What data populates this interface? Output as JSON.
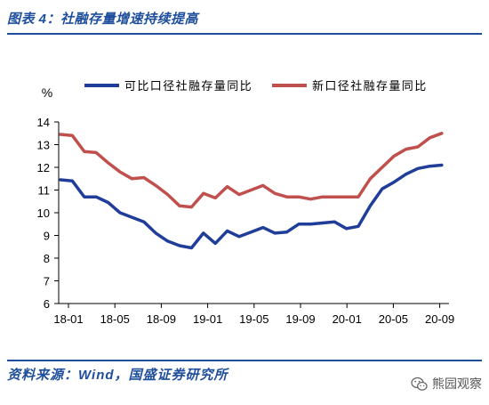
{
  "header": {
    "title": "图表 4：社融存量增速持续提高",
    "accent_color": "#1f4e9c"
  },
  "chart_data": {
    "type": "line",
    "ylabel": "%",
    "ylim": [
      6,
      14
    ],
    "yticks": [
      6,
      7,
      8,
      9,
      10,
      11,
      12,
      13,
      14
    ],
    "grid": false,
    "legend_position": "top",
    "categories": [
      "18-01",
      "18-02",
      "18-03",
      "18-04",
      "18-05",
      "18-06",
      "18-07",
      "18-08",
      "18-09",
      "18-10",
      "18-11",
      "18-12",
      "19-01",
      "19-02",
      "19-03",
      "19-04",
      "19-05",
      "19-06",
      "19-07",
      "19-08",
      "19-09",
      "19-10",
      "19-11",
      "19-12",
      "20-01",
      "20-02",
      "20-03",
      "20-04",
      "20-05",
      "20-06",
      "20-07",
      "20-08",
      "20-09"
    ],
    "series": [
      {
        "name": "可比口径社融存量同比",
        "color": "#1f3d99",
        "values": [
          11.45,
          11.4,
          10.7,
          10.7,
          10.45,
          10.0,
          9.8,
          9.6,
          9.1,
          8.75,
          8.55,
          8.45,
          9.1,
          8.65,
          9.2,
          8.95,
          9.15,
          9.35,
          9.1,
          9.15,
          9.5,
          9.5,
          9.55,
          9.6,
          9.3,
          9.4,
          10.3,
          11.05,
          11.35,
          11.7,
          11.95,
          12.05,
          12.1
        ]
      },
      {
        "name": "新口径社融存量同比",
        "color": "#c0504d",
        "values": [
          13.45,
          13.4,
          12.7,
          12.65,
          12.2,
          11.8,
          11.5,
          11.55,
          11.2,
          10.8,
          10.3,
          10.25,
          10.85,
          10.65,
          11.15,
          10.8,
          11.0,
          11.2,
          10.85,
          10.7,
          10.7,
          10.6,
          10.7,
          10.7,
          10.7,
          10.7,
          11.5,
          12.0,
          12.5,
          12.8,
          12.9,
          13.3,
          13.5
        ]
      }
    ]
  },
  "footer": {
    "source": "资料来源：Wind，国盛证券研究所"
  },
  "watermark": {
    "icon": "wechat-icon",
    "text": "熊园观察"
  }
}
